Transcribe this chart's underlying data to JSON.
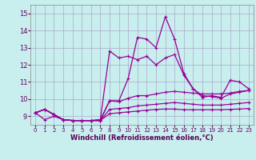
{
  "title": "",
  "xlabel": "Windchill (Refroidissement éolien,°C)",
  "ylabel": "",
  "bg_color": "#c8eeee",
  "grid_color": "#aaaacc",
  "line_color": "#990099",
  "xlim": [
    -0.5,
    23.5
  ],
  "ylim": [
    8.5,
    15.5
  ],
  "yticks": [
    9,
    10,
    11,
    12,
    13,
    14,
    15
  ],
  "xticks": [
    0,
    1,
    2,
    3,
    4,
    5,
    6,
    7,
    8,
    9,
    10,
    11,
    12,
    13,
    14,
    15,
    16,
    17,
    18,
    19,
    20,
    21,
    22,
    23
  ],
  "series": [
    [
      9.2,
      9.4,
      9.1,
      8.8,
      8.75,
      8.75,
      8.75,
      8.8,
      9.9,
      9.9,
      11.2,
      13.6,
      13.5,
      13.0,
      14.8,
      13.5,
      11.5,
      10.6,
      10.1,
      10.2,
      10.1,
      11.1,
      11.0,
      10.6
    ],
    [
      9.2,
      8.8,
      9.0,
      8.8,
      8.75,
      8.75,
      8.75,
      8.8,
      12.8,
      12.4,
      12.5,
      12.3,
      12.5,
      12.0,
      12.4,
      12.6,
      11.4,
      10.6,
      10.2,
      10.15,
      10.05,
      10.3,
      10.4,
      10.5
    ],
    [
      9.2,
      9.4,
      9.1,
      8.8,
      8.75,
      8.75,
      8.75,
      8.75,
      9.9,
      9.85,
      10.05,
      10.2,
      10.2,
      10.3,
      10.4,
      10.45,
      10.4,
      10.35,
      10.3,
      10.3,
      10.3,
      10.35,
      10.45,
      10.5
    ],
    [
      9.2,
      9.4,
      9.1,
      8.8,
      8.75,
      8.75,
      8.75,
      8.75,
      9.4,
      9.45,
      9.5,
      9.6,
      9.65,
      9.7,
      9.75,
      9.8,
      9.75,
      9.7,
      9.65,
      9.65,
      9.65,
      9.7,
      9.75,
      9.8
    ],
    [
      9.2,
      9.4,
      9.1,
      8.8,
      8.75,
      8.75,
      8.75,
      8.75,
      9.15,
      9.2,
      9.25,
      9.3,
      9.35,
      9.4,
      9.42,
      9.42,
      9.38,
      9.38,
      9.38,
      9.38,
      9.38,
      9.4,
      9.42,
      9.45
    ]
  ],
  "marker": "+",
  "markersize": 3,
  "linewidth": 0.9
}
